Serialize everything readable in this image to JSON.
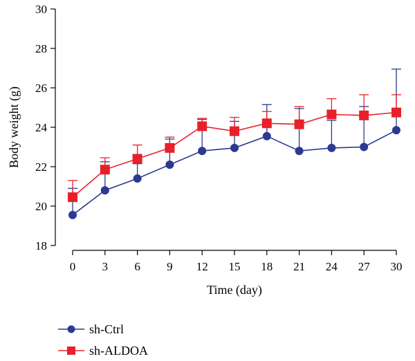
{
  "chart_data": {
    "type": "line",
    "xlabel": "Time (day)",
    "ylabel": "Body weight (g)",
    "x": [
      0,
      3,
      6,
      9,
      12,
      15,
      18,
      21,
      24,
      27,
      30
    ],
    "ylim": [
      18,
      30
    ],
    "yticks": [
      18,
      20,
      22,
      24,
      26,
      28,
      30
    ],
    "grid": false,
    "legend_position": "bottom-left",
    "series": [
      {
        "name": "sh-Ctrl",
        "color": "#2b3990",
        "marker": "circle",
        "values": [
          19.55,
          20.8,
          21.4,
          22.1,
          22.8,
          22.95,
          23.55,
          22.8,
          22.95,
          23.0,
          23.85
        ],
        "error": [
          1.35,
          1.45,
          0.75,
          1.3,
          1.6,
          1.35,
          1.6,
          2.15,
          1.4,
          2.05,
          3.1
        ]
      },
      {
        "name": "sh-ALDOA",
        "color": "#e8202a",
        "marker": "square",
        "values": [
          20.45,
          21.85,
          22.4,
          22.95,
          24.05,
          23.8,
          24.2,
          24.15,
          24.65,
          24.6,
          24.75
        ],
        "error": [
          0.85,
          0.6,
          0.7,
          0.55,
          0.4,
          0.7,
          0.6,
          0.9,
          0.8,
          1.05,
          0.9
        ]
      }
    ]
  }
}
